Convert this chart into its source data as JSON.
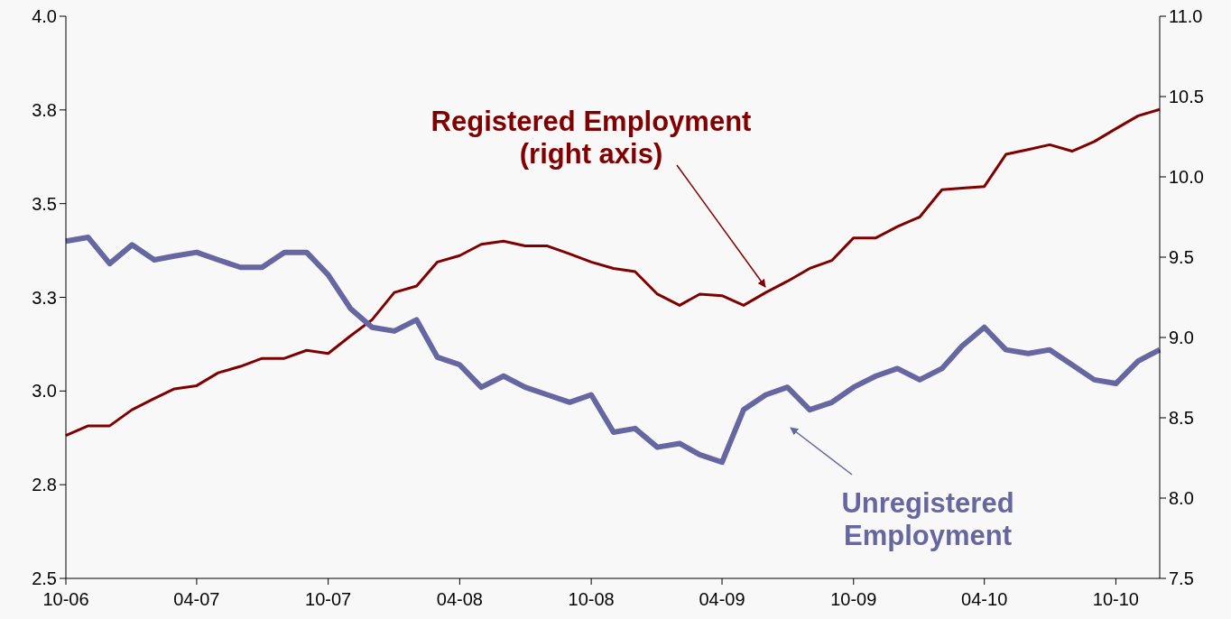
{
  "chart_data": {
    "type": "line",
    "x": [
      "2006-10",
      "2006-11",
      "2006-12",
      "2007-01",
      "2007-02",
      "2007-03",
      "2007-04",
      "2007-05",
      "2007-06",
      "2007-07",
      "2007-08",
      "2007-09",
      "2007-10",
      "2007-11",
      "2007-12",
      "2008-01",
      "2008-02",
      "2008-03",
      "2008-04",
      "2008-05",
      "2008-06",
      "2008-07",
      "2008-08",
      "2008-09",
      "2008-10",
      "2008-11",
      "2008-12",
      "2009-01",
      "2009-02",
      "2009-03",
      "2009-04",
      "2009-05",
      "2009-06",
      "2009-07",
      "2009-08",
      "2009-09",
      "2009-10",
      "2009-11",
      "2009-12",
      "2010-01",
      "2010-02",
      "2010-03",
      "2010-04",
      "2010-05",
      "2010-06",
      "2010-07",
      "2010-08",
      "2010-09",
      "2010-10",
      "2010-11",
      "2010-12"
    ],
    "series": [
      {
        "name": "Registered Employment\n(right axis)",
        "color": "#800000",
        "axis": "y2",
        "values": [
          8.39,
          8.45,
          8.45,
          8.55,
          8.62,
          8.68,
          8.7,
          8.78,
          8.82,
          8.87,
          8.87,
          8.92,
          8.9,
          9.01,
          9.11,
          9.28,
          9.32,
          9.47,
          9.51,
          9.58,
          9.6,
          9.57,
          9.57,
          9.52,
          9.47,
          9.43,
          9.41,
          9.27,
          9.2,
          9.27,
          9.26,
          9.2,
          9.28,
          9.35,
          9.43,
          9.48,
          9.62,
          9.62,
          9.69,
          9.75,
          9.92,
          9.93,
          9.94,
          10.14,
          10.17,
          10.2,
          10.16,
          10.22,
          10.3,
          10.38,
          10.42
        ]
      },
      {
        "name": "Unregistered\nEmployment",
        "color": "#6666a0",
        "values": [
          3.4,
          3.41,
          3.34,
          3.39,
          3.35,
          3.36,
          3.37,
          3.35,
          3.33,
          3.33,
          3.37,
          3.37,
          3.31,
          3.22,
          3.17,
          3.16,
          3.19,
          3.09,
          3.07,
          3.01,
          3.04,
          3.01,
          2.99,
          2.97,
          2.99,
          2.89,
          2.9,
          2.85,
          2.86,
          2.83,
          2.81,
          2.95,
          2.99,
          3.01,
          2.95,
          2.97,
          3.01,
          3.04,
          3.06,
          3.03,
          3.06,
          3.12,
          3.17,
          3.11,
          3.1,
          3.11,
          3.07,
          3.03,
          3.02,
          3.08,
          3.11
        ]
      }
    ],
    "xlim": [
      "2006-10",
      "2010-12"
    ],
    "xticks": [
      {
        "value": "2006-10",
        "label": "10-06"
      },
      {
        "value": "2007-04",
        "label": "04-07"
      },
      {
        "value": "2007-10",
        "label": "10-07"
      },
      {
        "value": "2008-04",
        "label": "04-08"
      },
      {
        "value": "2008-10",
        "label": "10-08"
      },
      {
        "value": "2009-04",
        "label": "04-09"
      },
      {
        "value": "2009-10",
        "label": "10-09"
      },
      {
        "value": "2010-04",
        "label": "04-10"
      },
      {
        "value": "2010-10",
        "label": "10-10"
      }
    ],
    "ylim": [
      2.5,
      4.0
    ],
    "yticks": [
      {
        "value": 2.5,
        "label": "2.5"
      },
      {
        "value": 2.75,
        "label": "2.8"
      },
      {
        "value": 3.0,
        "label": "3.0"
      },
      {
        "value": 3.25,
        "label": "3.3"
      },
      {
        "value": 3.5,
        "label": "3.5"
      },
      {
        "value": 3.75,
        "label": "3.8"
      },
      {
        "value": 4.0,
        "label": "4.0"
      }
    ],
    "y2lim": [
      7.5,
      11.0
    ],
    "y2ticks": [
      {
        "value": 7.5,
        "label": "7.5"
      },
      {
        "value": 8.0,
        "label": "8.0"
      },
      {
        "value": 8.5,
        "label": "8.5"
      },
      {
        "value": 9.0,
        "label": "9.0"
      },
      {
        "value": 9.5,
        "label": "9.5"
      },
      {
        "value": 10.0,
        "label": "10.0"
      },
      {
        "value": 10.5,
        "label": "10.5"
      },
      {
        "value": 11.0,
        "label": "11.0"
      }
    ],
    "grid": false
  }
}
